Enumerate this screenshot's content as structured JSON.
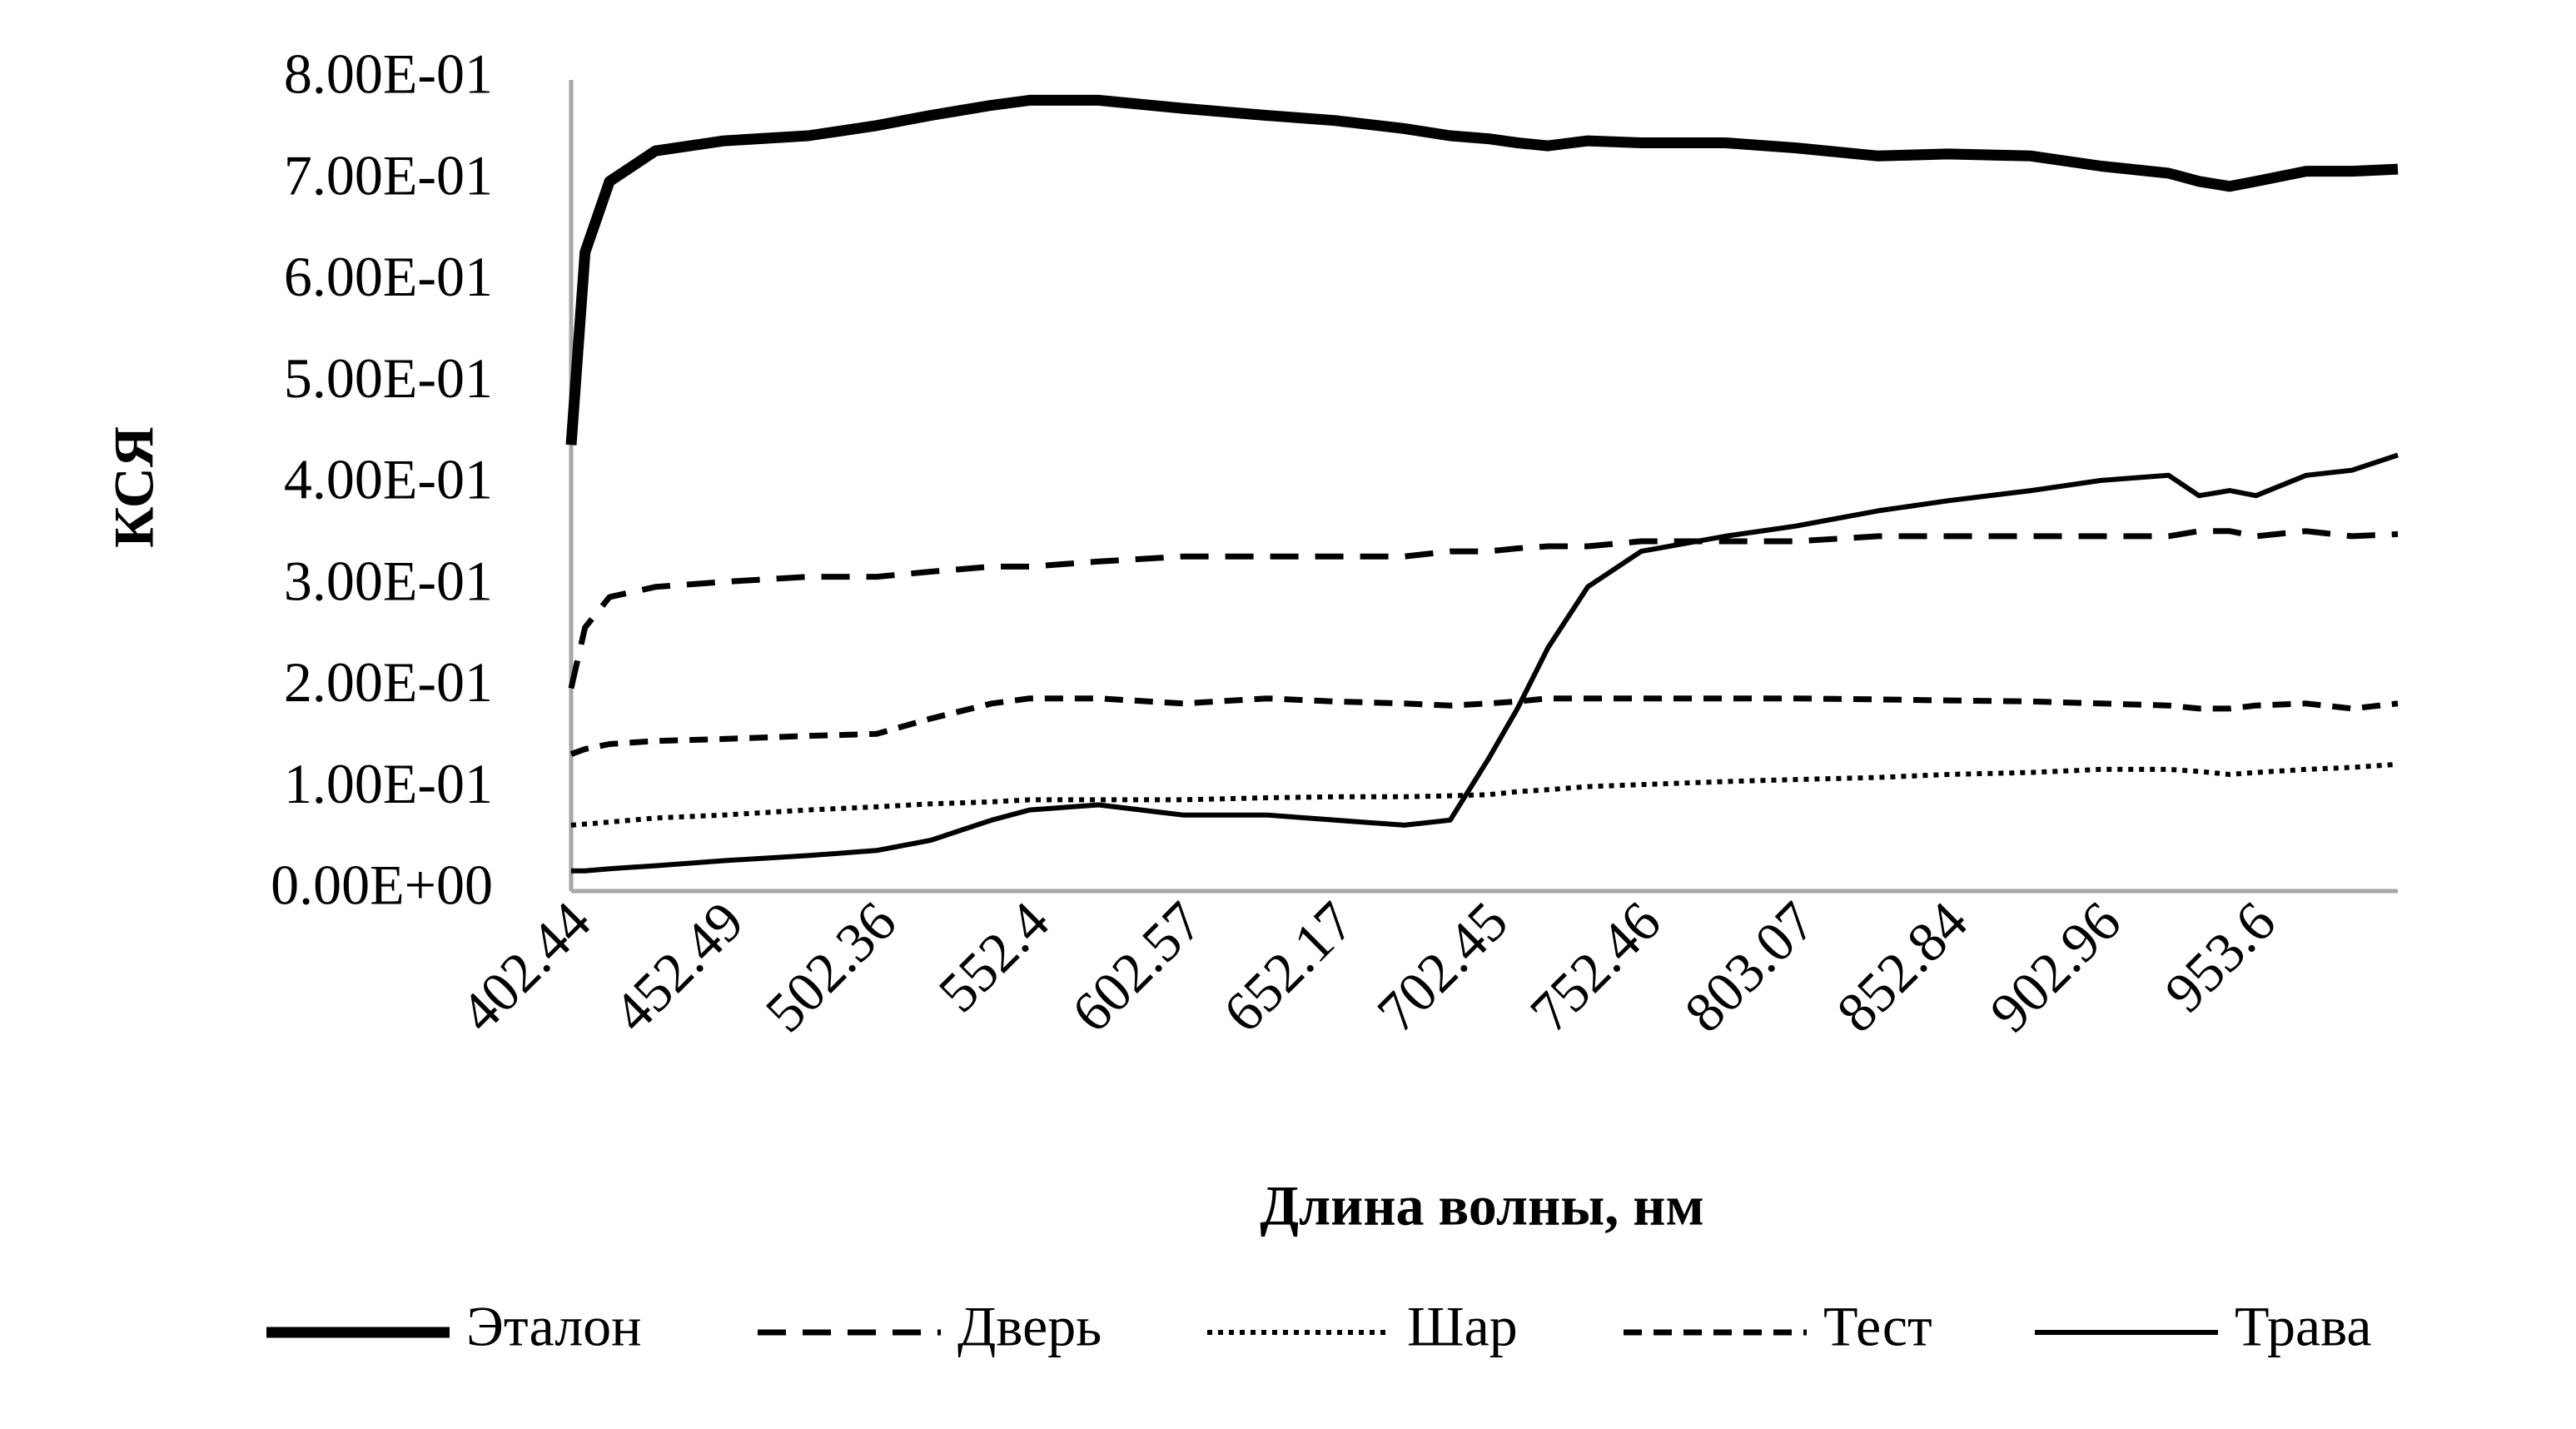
{
  "chart_data": {
    "type": "line",
    "x_label": "Длина волны, нм",
    "y_label": "КСЯ",
    "x": [
      402.44,
      407,
      415,
      430,
      452.49,
      480,
      502.36,
      520,
      540,
      552.4,
      575,
      602.57,
      630,
      652.17,
      675,
      690,
      702.45,
      712,
      722,
      735,
      752.46,
      780,
      803.07,
      830,
      852.84,
      880,
      902.96,
      925,
      935,
      945,
      953.6,
      970,
      985,
      1000
    ],
    "xlim": [
      402.44,
      1000
    ],
    "xticks": [
      402.44,
      452.49,
      502.36,
      552.4,
      602.57,
      652.17,
      702.45,
      752.46,
      803.07,
      852.84,
      902.96,
      953.6
    ],
    "ylim": [
      0,
      0.8
    ],
    "yticks": [
      {
        "value": 0,
        "label": "0.00E+00"
      },
      {
        "value": 0.1,
        "label": "1.00E-01"
      },
      {
        "value": 0.2,
        "label": "2.00E-01"
      },
      {
        "value": 0.3,
        "label": "3.00E-01"
      },
      {
        "value": 0.4,
        "label": "4.00E-01"
      },
      {
        "value": 0.5,
        "label": "5.00E-01"
      },
      {
        "value": 0.6,
        "label": "6.00E-01"
      },
      {
        "value": 0.7,
        "label": "7.00E-01"
      },
      {
        "value": 0.8,
        "label": "8.00E-01"
      }
    ],
    "grid": false,
    "legend": "bottom",
    "series": [
      {
        "name": "Эталон",
        "color": "#000000",
        "style": "thick",
        "values": [
          0.44,
          0.63,
          0.7,
          0.73,
          0.74,
          0.745,
          0.755,
          0.765,
          0.775,
          0.78,
          0.78,
          0.772,
          0.765,
          0.76,
          0.752,
          0.745,
          0.742,
          0.738,
          0.735,
          0.74,
          0.738,
          0.738,
          0.733,
          0.725,
          0.727,
          0.725,
          0.715,
          0.708,
          0.7,
          0.695,
          0.7,
          0.71,
          0.71,
          0.712
        ]
      },
      {
        "name": "Дверь",
        "color": "#000000",
        "style": "dash",
        "values": [
          0.2,
          0.26,
          0.29,
          0.3,
          0.305,
          0.31,
          0.31,
          0.315,
          0.32,
          0.32,
          0.325,
          0.33,
          0.33,
          0.33,
          0.33,
          0.335,
          0.335,
          0.338,
          0.34,
          0.34,
          0.345,
          0.345,
          0.345,
          0.35,
          0.35,
          0.35,
          0.35,
          0.35,
          0.355,
          0.355,
          0.35,
          0.355,
          0.35,
          0.352
        ]
      },
      {
        "name": "Шар",
        "color": "#000000",
        "style": "dot",
        "values": [
          0.065,
          0.066,
          0.068,
          0.072,
          0.075,
          0.08,
          0.083,
          0.086,
          0.088,
          0.09,
          0.09,
          0.09,
          0.092,
          0.093,
          0.093,
          0.094,
          0.095,
          0.098,
          0.1,
          0.103,
          0.105,
          0.108,
          0.11,
          0.112,
          0.115,
          0.117,
          0.12,
          0.12,
          0.118,
          0.115,
          0.117,
          0.12,
          0.122,
          0.125
        ]
      },
      {
        "name": "Тест",
        "color": "#000000",
        "style": "dash-short",
        "values": [
          0.135,
          0.14,
          0.145,
          0.148,
          0.15,
          0.153,
          0.155,
          0.17,
          0.185,
          0.19,
          0.19,
          0.185,
          0.19,
          0.187,
          0.185,
          0.183,
          0.185,
          0.187,
          0.19,
          0.19,
          0.19,
          0.19,
          0.19,
          0.189,
          0.188,
          0.187,
          0.185,
          0.183,
          0.18,
          0.18,
          0.183,
          0.185,
          0.18,
          0.185
        ]
      },
      {
        "name": "Трава",
        "color": "#000000",
        "style": "solid",
        "values": [
          0.02,
          0.02,
          0.022,
          0.025,
          0.03,
          0.035,
          0.04,
          0.05,
          0.07,
          0.08,
          0.085,
          0.075,
          0.075,
          0.07,
          0.065,
          0.07,
          0.13,
          0.18,
          0.24,
          0.3,
          0.335,
          0.35,
          0.36,
          0.375,
          0.385,
          0.395,
          0.405,
          0.41,
          0.39,
          0.395,
          0.39,
          0.41,
          0.415,
          0.43
        ]
      }
    ]
  }
}
